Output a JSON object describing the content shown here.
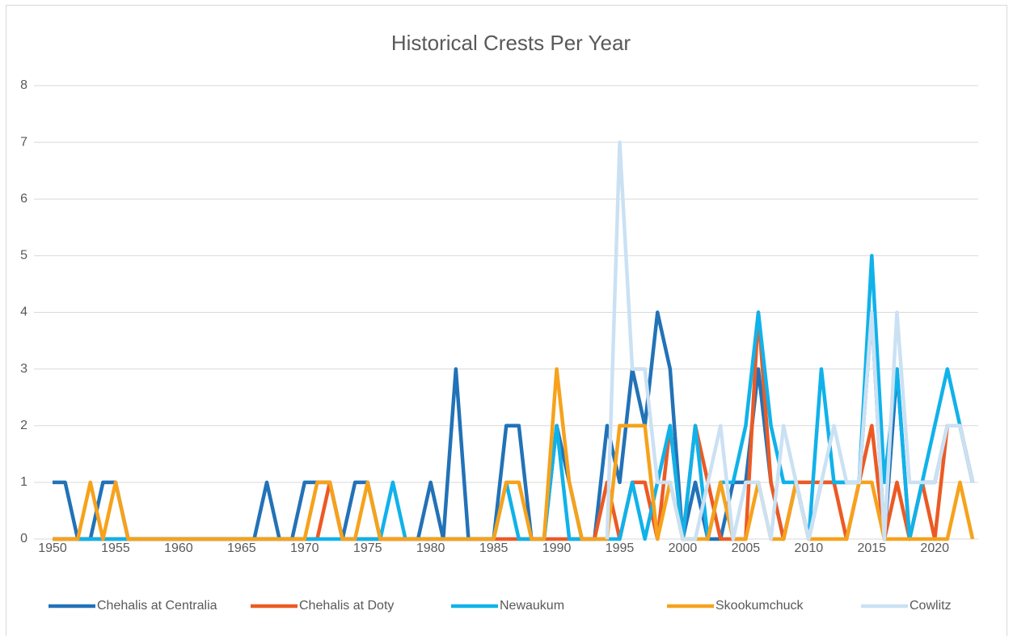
{
  "chart_data": {
    "type": "line",
    "title": "Historical Crests Per Year",
    "x": [
      1950,
      1951,
      1952,
      1953,
      1954,
      1955,
      1956,
      1957,
      1958,
      1959,
      1960,
      1961,
      1962,
      1963,
      1964,
      1965,
      1966,
      1967,
      1968,
      1969,
      1970,
      1971,
      1972,
      1973,
      1974,
      1975,
      1976,
      1977,
      1978,
      1979,
      1980,
      1981,
      1982,
      1983,
      1984,
      1985,
      1986,
      1987,
      1988,
      1989,
      1990,
      1991,
      1992,
      1993,
      1994,
      1995,
      1996,
      1997,
      1998,
      1999,
      2000,
      2001,
      2002,
      2003,
      2004,
      2005,
      2006,
      2007,
      2008,
      2009,
      2010,
      2011,
      2012,
      2013,
      2014,
      2015,
      2016,
      2017,
      2018,
      2019,
      2020,
      2021,
      2022,
      2023
    ],
    "xlim": [
      1950,
      2023
    ],
    "xticks": [
      1950,
      1955,
      1960,
      1965,
      1970,
      1975,
      1980,
      1985,
      1990,
      1995,
      2000,
      2005,
      2010,
      2015,
      2020
    ],
    "ylim": [
      0,
      8
    ],
    "yticks": [
      0,
      1,
      2,
      3,
      4,
      5,
      6,
      7,
      8
    ],
    "grid": true,
    "legend": "bottom",
    "series": [
      {
        "name": "Chehalis at Centralia",
        "color": "#2272b7",
        "values": [
          1,
          1,
          0,
          0,
          1,
          1,
          0,
          0,
          0,
          0,
          0,
          0,
          0,
          0,
          0,
          0,
          0,
          1,
          0,
          0,
          1,
          1,
          1,
          0,
          1,
          1,
          0,
          0,
          0,
          0,
          1,
          0,
          3,
          0,
          0,
          0,
          2,
          2,
          0,
          0,
          2,
          1,
          0,
          0,
          2,
          1,
          3,
          2,
          4,
          3,
          0,
          1,
          0,
          0,
          1,
          1,
          3,
          1,
          0,
          1,
          0,
          1,
          1,
          1,
          1,
          4,
          0,
          3,
          0,
          1,
          1,
          2,
          2,
          1
        ]
      },
      {
        "name": "Chehalis at Doty",
        "color": "#ec5a24",
        "values": [
          0,
          0,
          0,
          0,
          0,
          0,
          0,
          0,
          0,
          0,
          0,
          0,
          0,
          0,
          0,
          0,
          0,
          0,
          0,
          0,
          0,
          0,
          1,
          0,
          0,
          0,
          0,
          0,
          0,
          0,
          0,
          0,
          0,
          0,
          0,
          0,
          0,
          0,
          0,
          0,
          0,
          0,
          0,
          0,
          1,
          0,
          1,
          1,
          0,
          2,
          0,
          2,
          1,
          0,
          0,
          0,
          4,
          1,
          0,
          1,
          1,
          1,
          1,
          0,
          1,
          2,
          0,
          1,
          0,
          1,
          0,
          2,
          2,
          1
        ]
      },
      {
        "name": "Newaukum",
        "color": "#10b2ea",
        "values": [
          0,
          0,
          0,
          0,
          0,
          0,
          0,
          0,
          0,
          0,
          0,
          0,
          0,
          0,
          0,
          0,
          0,
          0,
          0,
          0,
          0,
          0,
          0,
          0,
          0,
          0,
          0,
          1,
          0,
          0,
          0,
          0,
          0,
          0,
          0,
          0,
          1,
          0,
          0,
          0,
          2,
          0,
          0,
          0,
          0,
          0,
          1,
          0,
          1,
          2,
          0,
          2,
          0,
          1,
          1,
          2,
          4,
          2,
          1,
          1,
          0,
          3,
          1,
          1,
          1,
          5,
          1,
          3,
          0,
          1,
          2,
          3,
          2,
          1
        ]
      },
      {
        "name": "Skookumchuck",
        "color": "#f6a21c",
        "values": [
          0,
          0,
          0,
          1,
          0,
          1,
          0,
          0,
          0,
          0,
          0,
          0,
          0,
          0,
          0,
          0,
          0,
          0,
          0,
          0,
          0,
          1,
          1,
          0,
          0,
          1,
          0,
          0,
          0,
          0,
          0,
          0,
          0,
          0,
          0,
          0,
          1,
          1,
          0,
          0,
          3,
          1,
          0,
          0,
          0,
          2,
          2,
          2,
          0,
          1,
          0,
          0,
          0,
          1,
          0,
          0,
          1,
          0,
          0,
          1,
          0,
          0,
          0,
          0,
          1,
          1,
          0,
          0,
          0,
          0,
          0,
          0,
          1,
          0
        ]
      },
      {
        "name": "Cowlitz",
        "color": "#cbe1f3",
        "values": [
          null,
          null,
          null,
          null,
          null,
          null,
          null,
          null,
          null,
          null,
          null,
          null,
          null,
          null,
          null,
          null,
          null,
          null,
          null,
          null,
          null,
          null,
          null,
          null,
          null,
          null,
          null,
          null,
          null,
          null,
          null,
          null,
          null,
          null,
          null,
          null,
          null,
          null,
          null,
          null,
          null,
          null,
          null,
          null,
          0,
          7,
          3,
          3,
          1,
          1,
          0,
          0,
          1,
          2,
          0,
          1,
          1,
          0,
          2,
          1,
          0,
          1,
          2,
          1,
          1,
          4,
          0,
          4,
          1,
          1,
          1,
          2,
          2,
          1
        ]
      }
    ]
  }
}
